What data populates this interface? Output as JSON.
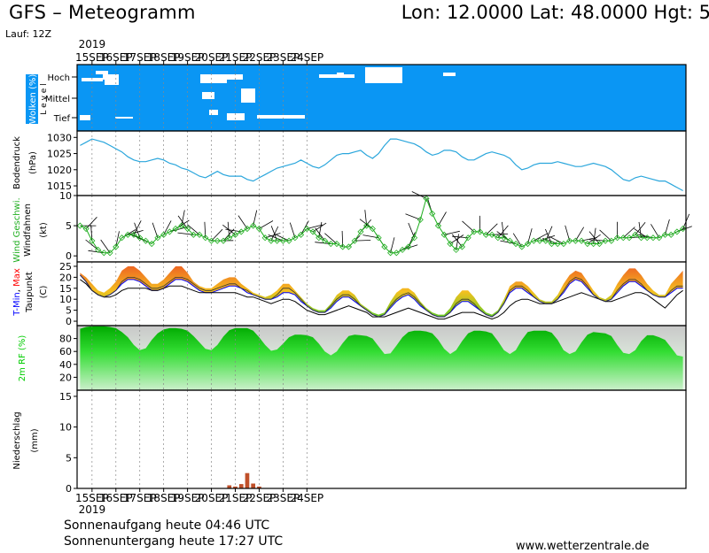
{
  "header": {
    "title": "GFS – Meteogramm",
    "coords": "Lon: 12.0000  Lat: 48.0000  Hgt: 5",
    "run": "Lauf: 12Z"
  },
  "footer": {
    "sunrise": "Sonnenaufgang heute 04:46 UTC",
    "sunset": "Sonnenuntergang heute 17:27 UTC",
    "website": "www.wetterzentrale.de"
  },
  "colors": {
    "cloud_bg": "#0a96f4",
    "pressure": "#2aa6dc",
    "wind": "#1fae1f",
    "tmin": "#0000ff",
    "tmax": "#ff0000",
    "humidity": "#00cc00",
    "precip": "#c0502a"
  },
  "chart_data": {
    "type": "meteogram",
    "year": "2019",
    "days": [
      "15SEP",
      "16SEP",
      "17SEP",
      "18SEP",
      "19SEP",
      "20SEP",
      "21SEP",
      "22SEP",
      "23SEP",
      "24SEP"
    ],
    "day_start_index": 2,
    "step_hours": 6,
    "panels": [
      {
        "id": "clouds",
        "ylabel": "Wolken (%)",
        "level_label": "L e v e l",
        "levels": [
          "Hoch",
          "Mittel",
          "Tief"
        ]
      },
      {
        "id": "pressure",
        "ylabel": "Bodendruck",
        "unit": "(hPa)",
        "ylim": [
          1012,
          1032
        ],
        "ticks": [
          1015,
          1020,
          1025,
          1030
        ],
        "values": [
          1027.5,
          1028.5,
          1029.5,
          1029,
          1028.5,
          1027.5,
          1026.5,
          1025.5,
          1024,
          1023,
          1022.5,
          1022.5,
          1023,
          1023.5,
          1023,
          1022,
          1021.5,
          1020.5,
          1020,
          1019,
          1018,
          1017.5,
          1018.5,
          1019.5,
          1018.5,
          1018,
          1018,
          1018,
          1017,
          1016.5,
          1017.5,
          1018.5,
          1019.5,
          1020.5,
          1021,
          1021.5,
          1022,
          1023,
          1022,
          1021,
          1020.5,
          1021.5,
          1023,
          1024.5,
          1025,
          1025,
          1025.5,
          1026,
          1024.5,
          1023.5,
          1025,
          1027.5,
          1029.5,
          1029.5,
          1029,
          1028.5,
          1028,
          1027,
          1025.5,
          1024.5,
          1025,
          1026,
          1026,
          1025.5,
          1024,
          1023,
          1023,
          1024,
          1025,
          1025.5,
          1025,
          1024.5,
          1023.5,
          1021.5,
          1020,
          1020.5,
          1021.5,
          1022,
          1022,
          1022,
          1022.5,
          1022,
          1021.5,
          1021,
          1021,
          1021.5,
          1022,
          1021.5,
          1021,
          1020,
          1018.5,
          1017,
          1016.5,
          1017.5,
          1018,
          1017.5,
          1017,
          1016.5,
          1016.5,
          1015.5,
          1014.5,
          1013.5
        ]
      },
      {
        "id": "wind",
        "ylabel": "Wind Geschwi.",
        "ylabel2": "Windfahnen",
        "unit": "(kt)",
        "ylim": [
          -1,
          10
        ],
        "ticks": [
          0,
          5,
          10
        ],
        "values": [
          5,
          4.5,
          2.5,
          1,
          0.5,
          0.5,
          1.5,
          3,
          3.5,
          3.5,
          3,
          2.5,
          2,
          3,
          3.5,
          4,
          4.5,
          5,
          4.5,
          3.5,
          3.5,
          3,
          2.5,
          2.5,
          2.5,
          3,
          3.5,
          4,
          4.5,
          5,
          4.5,
          3,
          2.5,
          2.5,
          2.5,
          2.5,
          3,
          3.5,
          4.5,
          4,
          3,
          2.5,
          2,
          2,
          1.5,
          1.5,
          2.5,
          4,
          5,
          4.5,
          3,
          1.5,
          0.5,
          0.5,
          1,
          1.5,
          3,
          6,
          9.5,
          7,
          5,
          3.5,
          2,
          1,
          1.5,
          3,
          4,
          4,
          3.5,
          3.5,
          3,
          3,
          2.5,
          2,
          1.5,
          2,
          2.5,
          2.5,
          2.5,
          2,
          2,
          2,
          2.5,
          2.5,
          2.5,
          2,
          2,
          2,
          2.5,
          2.5,
          3,
          3,
          3,
          3.5,
          3,
          3,
          3,
          3,
          3.5,
          3.5,
          4,
          4.5
        ]
      },
      {
        "id": "temperature",
        "ylabel": "T-Min, Max",
        "ylabel_min": "T-Min",
        "ylabel_max": "Max",
        "ylabel2": "Taupunkt",
        "unit": "(C)",
        "ylim": [
          -2,
          27
        ],
        "ticks": [
          0,
          5,
          10,
          15,
          20,
          25
        ],
        "temp": [
          21,
          18,
          14,
          12,
          11,
          12,
          14,
          18,
          20,
          20,
          19,
          17,
          15,
          15,
          16,
          18,
          20,
          20,
          19,
          17,
          15,
          14,
          14,
          15,
          16,
          17,
          17,
          15,
          14,
          12,
          11,
          10,
          10,
          12,
          15,
          15,
          13,
          10,
          7,
          5,
          4,
          4,
          7,
          10,
          12,
          12,
          10,
          7,
          5,
          3,
          2,
          3,
          7,
          10,
          12,
          13,
          11,
          8,
          5,
          3,
          2,
          2,
          4,
          8,
          10,
          10,
          8,
          5,
          3,
          2,
          4,
          8,
          14,
          16,
          16,
          14,
          11,
          9,
          8,
          8,
          10,
          14,
          18,
          20,
          19,
          16,
          12,
          10,
          9,
          10,
          14,
          17,
          19,
          19,
          17,
          14,
          12,
          11,
          11,
          14,
          16,
          16
        ],
        "tmax": [
          22,
          20,
          17,
          14,
          13,
          15,
          18,
          23,
          25,
          25,
          23,
          20,
          17,
          17,
          19,
          22,
          25,
          25,
          22,
          18,
          16,
          15,
          15,
          17,
          19,
          20,
          20,
          17,
          15,
          13,
          12,
          11,
          12,
          14,
          17,
          17,
          14,
          11,
          8,
          6,
          5,
          5,
          8,
          12,
          14,
          14,
          12,
          8,
          6,
          4,
          3,
          4,
          9,
          13,
          15,
          15,
          13,
          9,
          6,
          4,
          3,
          3,
          6,
          11,
          14,
          14,
          11,
          7,
          4,
          3,
          5,
          10,
          16,
          18,
          18,
          16,
          13,
          10,
          9,
          9,
          12,
          17,
          21,
          23,
          22,
          18,
          14,
          11,
          10,
          12,
          17,
          21,
          24,
          24,
          21,
          17,
          14,
          12,
          12,
          17,
          20,
          23
        ],
        "tmin": [
          21,
          18,
          14,
          12,
          11,
          12,
          14,
          17,
          19,
          19,
          18,
          16,
          14,
          14,
          15,
          17,
          19,
          19,
          18,
          16,
          14,
          13,
          13,
          14,
          15,
          16,
          16,
          15,
          13,
          12,
          11,
          10,
          10,
          11,
          13,
          13,
          12,
          9,
          7,
          5,
          4,
          4,
          6,
          9,
          11,
          11,
          9,
          7,
          5,
          3,
          2,
          3,
          6,
          9,
          11,
          12,
          10,
          7,
          5,
          3,
          2,
          2,
          4,
          7,
          9,
          9,
          7,
          5,
          3,
          2,
          4,
          8,
          13,
          15,
          15,
          13,
          11,
          9,
          8,
          8,
          10,
          13,
          17,
          19,
          18,
          15,
          12,
          10,
          9,
          10,
          13,
          16,
          18,
          18,
          16,
          14,
          12,
          11,
          11,
          13,
          15,
          15
        ],
        "dewpoint": [
          19,
          17,
          14,
          12,
          11,
          11,
          12,
          14,
          15,
          15,
          15,
          15,
          14,
          14,
          15,
          16,
          16,
          16,
          15,
          14,
          13,
          13,
          13,
          13,
          13,
          13,
          13,
          12,
          11,
          11,
          10,
          9,
          8,
          9,
          10,
          10,
          9,
          7,
          5,
          4,
          3,
          3,
          4,
          5,
          6,
          7,
          6,
          5,
          4,
          2,
          2,
          2,
          3,
          4,
          5,
          6,
          5,
          4,
          3,
          2,
          1,
          1,
          2,
          3,
          4,
          4,
          4,
          3,
          2,
          1,
          2,
          4,
          7,
          9,
          10,
          10,
          9,
          8,
          8,
          8,
          9,
          10,
          11,
          12,
          13,
          12,
          11,
          10,
          9,
          9,
          10,
          11,
          12,
          13,
          13,
          12,
          10,
          8,
          6,
          9,
          12,
          14
        ]
      },
      {
        "id": "humidity",
        "ylabel": "2m RF (%)",
        "ylim": [
          0,
          100
        ],
        "ticks": [
          20,
          40,
          60,
          80
        ],
        "values": [
          95,
          98,
          99,
          99,
          99,
          98,
          96,
          90,
          82,
          70,
          62,
          65,
          78,
          88,
          94,
          96,
          96,
          95,
          92,
          84,
          74,
          64,
          62,
          70,
          83,
          93,
          96,
          96,
          96,
          92,
          82,
          70,
          61,
          63,
          72,
          82,
          86,
          86,
          85,
          82,
          72,
          60,
          54,
          60,
          73,
          84,
          86,
          85,
          84,
          80,
          68,
          56,
          57,
          69,
          82,
          90,
          92,
          92,
          91,
          88,
          78,
          64,
          56,
          62,
          76,
          88,
          92,
          92,
          91,
          88,
          76,
          62,
          56,
          62,
          78,
          90,
          92,
          92,
          92,
          89,
          78,
          62,
          56,
          60,
          74,
          86,
          90,
          89,
          88,
          84,
          70,
          58,
          56,
          62,
          76,
          85,
          85,
          82,
          78,
          66,
          54,
          52
        ]
      },
      {
        "id": "precip",
        "ylabel": "Niederschlag",
        "unit": "(mm)",
        "ylim": [
          0,
          16
        ],
        "ticks": [
          0,
          5,
          10,
          15
        ],
        "values": [
          0,
          0,
          0,
          0,
          0,
          0,
          0,
          0,
          0,
          0,
          0,
          0,
          0,
          0,
          0,
          0,
          0,
          0,
          0,
          0,
          0,
          0,
          0,
          0,
          0,
          0.5,
          0.3,
          0.7,
          2.5,
          0.8,
          0.3,
          0,
          0,
          0,
          0,
          0,
          0,
          0,
          0,
          0,
          0,
          0,
          0,
          0,
          0,
          0,
          0,
          0,
          0,
          0,
          0,
          0,
          0,
          0,
          0,
          0,
          0,
          0,
          0,
          0,
          0,
          0,
          0,
          0,
          0,
          0,
          0,
          0,
          0,
          0,
          0,
          0,
          0,
          0,
          0,
          0,
          0,
          0,
          0,
          0,
          0,
          0,
          0,
          0,
          0,
          0,
          0,
          0,
          0,
          0,
          0,
          0,
          0,
          0,
          0,
          0,
          0,
          0,
          0,
          0,
          0,
          0
        ]
      }
    ]
  }
}
